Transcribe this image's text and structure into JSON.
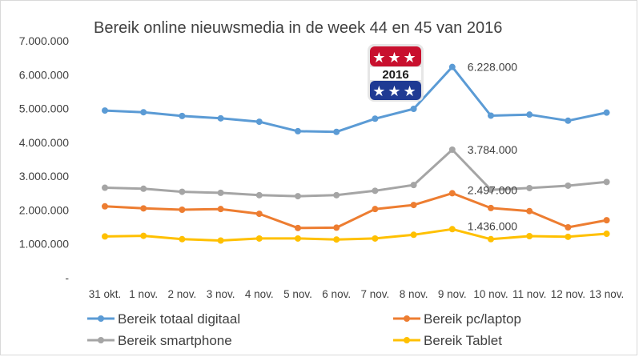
{
  "chart_data": {
    "type": "line",
    "title": "Bereik online nieuwsmedia in de week 44 en 45 van 2016",
    "categories": [
      "31 okt.",
      "1 nov.",
      "2 nov.",
      "3 nov.",
      "4 nov.",
      "5 nov.",
      "6 nov.",
      "7 nov.",
      "8 nov.",
      "9 nov.",
      "10 nov.",
      "11 nov.",
      "12 nov.",
      "13 nov."
    ],
    "y_ticks": [
      "-",
      "1.000.000",
      "2.000.000",
      "3.000.000",
      "4.000.000",
      "5.000.000",
      "6.000.000",
      "7.000.000"
    ],
    "ylim": [
      0,
      7000000
    ],
    "grid": false,
    "legend_position": "bottom",
    "series": [
      {
        "name": "Bereik totaal digitaal",
        "color": "#5b9bd5",
        "values": [
          4940000,
          4890000,
          4780000,
          4710000,
          4610000,
          4330000,
          4310000,
          4700000,
          4990000,
          6228000,
          4790000,
          4820000,
          4640000,
          4880000
        ]
      },
      {
        "name": "Bereik pc/laptop",
        "color": "#ed7d31",
        "values": [
          2110000,
          2050000,
          2010000,
          2030000,
          1890000,
          1470000,
          1480000,
          2030000,
          2150000,
          2497000,
          2060000,
          1970000,
          1490000,
          1700000
        ]
      },
      {
        "name": "Bereik smartphone",
        "color": "#a5a5a5",
        "values": [
          2660000,
          2630000,
          2540000,
          2510000,
          2440000,
          2410000,
          2440000,
          2570000,
          2740000,
          3784000,
          2600000,
          2650000,
          2720000,
          2830000
        ]
      },
      {
        "name": "Bereik Tablet",
        "color": "#ffc000",
        "values": [
          1220000,
          1240000,
          1140000,
          1100000,
          1160000,
          1160000,
          1130000,
          1160000,
          1270000,
          1436000,
          1140000,
          1230000,
          1210000,
          1300000
        ]
      }
    ],
    "annotations": [
      "6.228.000",
      "3.784.000",
      "2.497.000",
      "1.436.000"
    ]
  },
  "badge": {
    "year": "2016",
    "stars_top": "★★★",
    "stars_bottom": "★★★",
    "color_top": "#c8102e",
    "color_bottom": "#1f3a93"
  }
}
